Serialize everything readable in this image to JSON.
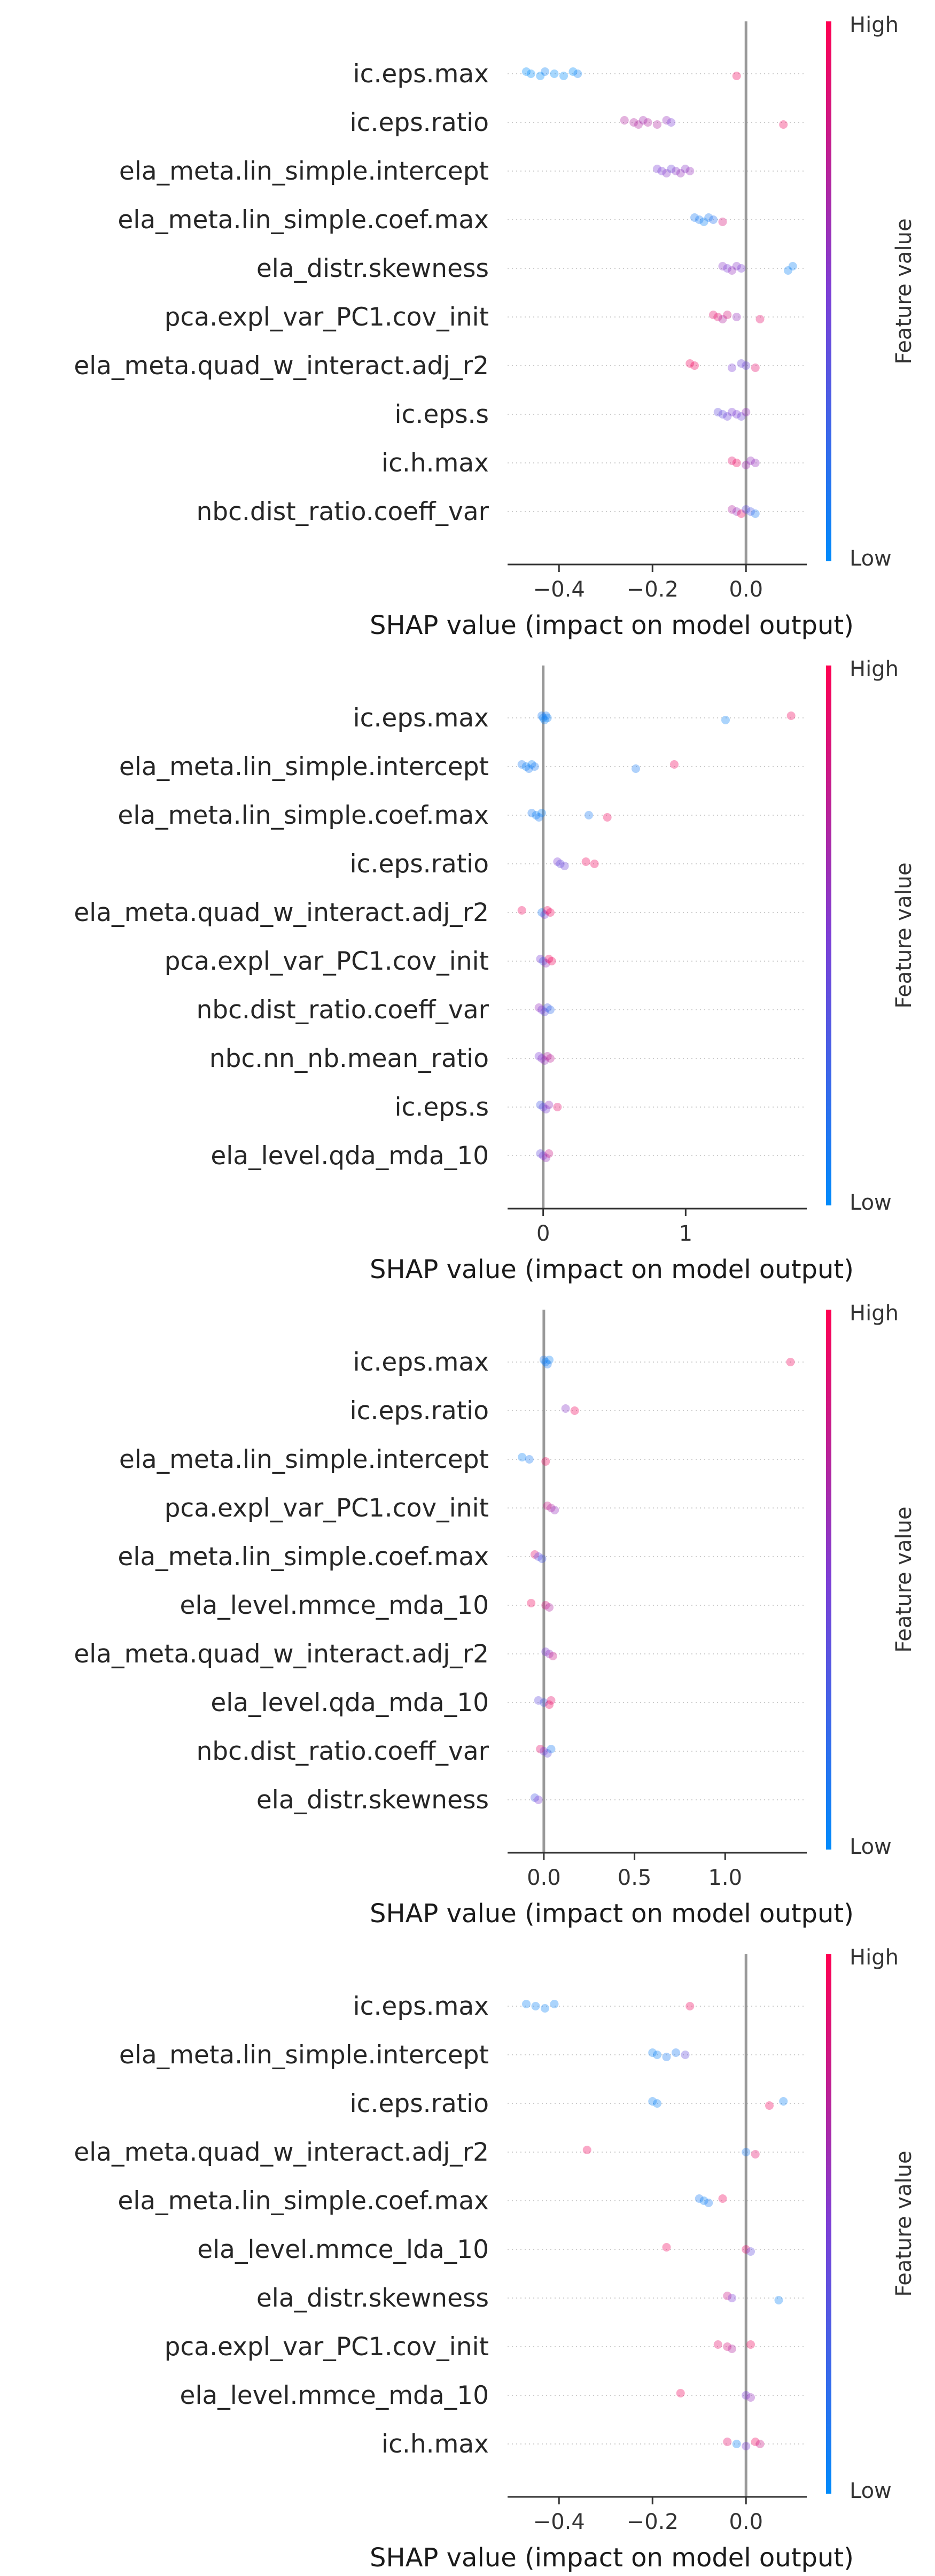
{
  "colors": {
    "high": "#ff0052",
    "low": "#008bfb",
    "zero_line": "#999999",
    "axis": "#333333",
    "row_line": "#cccccc"
  },
  "chart_data": [
    {
      "type": "scatter",
      "subtype": "shap_beeswarm",
      "xlabel": "SHAP value (impact on model output)",
      "colorbar": {
        "title": "Feature value",
        "high_label": "High",
        "low_label": "Low"
      },
      "xlim": [
        -0.51,
        0.13
      ],
      "xticks": [
        -0.4,
        -0.2,
        0.0
      ],
      "xtick_labels": [
        "−0.4",
        "−0.2",
        "0.0"
      ],
      "features": [
        {
          "name": "ic.eps.max",
          "points": [
            [
              -0.47,
              0.0
            ],
            [
              -0.46,
              0.0
            ],
            [
              -0.44,
              0.0
            ],
            [
              -0.43,
              0.05
            ],
            [
              -0.41,
              0.0
            ],
            [
              -0.39,
              0.0
            ],
            [
              -0.37,
              0.0
            ],
            [
              -0.36,
              0.05
            ],
            [
              -0.02,
              0.95
            ]
          ]
        },
        {
          "name": "ic.eps.ratio",
          "points": [
            [
              -0.26,
              0.7
            ],
            [
              -0.24,
              0.7
            ],
            [
              -0.23,
              0.7
            ],
            [
              -0.22,
              0.65
            ],
            [
              -0.21,
              0.7
            ],
            [
              -0.19,
              0.7
            ],
            [
              -0.17,
              0.6
            ],
            [
              -0.16,
              0.5
            ],
            [
              0.08,
              0.95
            ]
          ]
        },
        {
          "name": "ela_meta.lin_simple.intercept",
          "points": [
            [
              -0.19,
              0.5
            ],
            [
              -0.18,
              0.5
            ],
            [
              -0.17,
              0.55
            ],
            [
              -0.16,
              0.45
            ],
            [
              -0.15,
              0.55
            ],
            [
              -0.14,
              0.6
            ],
            [
              -0.13,
              0.55
            ],
            [
              -0.12,
              0.6
            ]
          ]
        },
        {
          "name": "ela_meta.lin_simple.coef.max",
          "points": [
            [
              -0.11,
              0.1
            ],
            [
              -0.1,
              0.1
            ],
            [
              -0.09,
              0.05
            ],
            [
              -0.08,
              0.1
            ],
            [
              -0.07,
              0.15
            ],
            [
              -0.05,
              0.85
            ]
          ]
        },
        {
          "name": "ela_distr.skewness",
          "points": [
            [
              -0.05,
              0.55
            ],
            [
              -0.04,
              0.5
            ],
            [
              -0.03,
              0.6
            ],
            [
              -0.02,
              0.55
            ],
            [
              -0.01,
              0.5
            ],
            [
              0.09,
              0.05
            ],
            [
              0.1,
              0.05
            ]
          ]
        },
        {
          "name": "pca.expl_var_PC1.cov_init",
          "points": [
            [
              -0.07,
              0.9
            ],
            [
              -0.06,
              0.9
            ],
            [
              -0.05,
              0.7
            ],
            [
              -0.04,
              0.85
            ],
            [
              -0.02,
              0.6
            ],
            [
              0.03,
              0.9
            ]
          ]
        },
        {
          "name": "ela_meta.quad_w_interact.adj_r2",
          "points": [
            [
              -0.12,
              0.95
            ],
            [
              -0.11,
              0.95
            ],
            [
              -0.03,
              0.5
            ],
            [
              -0.01,
              0.45
            ],
            [
              0.0,
              0.45
            ],
            [
              0.02,
              0.9
            ]
          ]
        },
        {
          "name": "ic.eps.s",
          "points": [
            [
              -0.06,
              0.4
            ],
            [
              -0.05,
              0.4
            ],
            [
              -0.04,
              0.45
            ],
            [
              -0.03,
              0.5
            ],
            [
              -0.02,
              0.5
            ],
            [
              -0.01,
              0.45
            ],
            [
              0.0,
              0.6
            ]
          ]
        },
        {
          "name": "ic.h.max",
          "points": [
            [
              -0.03,
              0.9
            ],
            [
              -0.02,
              0.95
            ],
            [
              0.0,
              0.65
            ],
            [
              0.01,
              0.6
            ],
            [
              0.02,
              0.6
            ]
          ]
        },
        {
          "name": "nbc.dist_ratio.coeff_var",
          "points": [
            [
              -0.03,
              0.7
            ],
            [
              -0.02,
              0.6
            ],
            [
              -0.01,
              0.95
            ],
            [
              0.0,
              0.4
            ],
            [
              0.01,
              0.3
            ],
            [
              0.02,
              0.1
            ]
          ]
        }
      ]
    },
    {
      "type": "scatter",
      "subtype": "shap_beeswarm",
      "xlabel": "SHAP value (impact on model output)",
      "colorbar": {
        "title": "Feature value",
        "high_label": "High",
        "low_label": "Low"
      },
      "xlim": [
        -0.25,
        1.85
      ],
      "xticks": [
        0,
        1
      ],
      "xtick_labels": [
        "0",
        "1"
      ],
      "features": [
        {
          "name": "ic.eps.max",
          "points": [
            [
              -0.01,
              0.1
            ],
            [
              0.0,
              0.05
            ],
            [
              0.01,
              0.05
            ],
            [
              0.02,
              0.1
            ],
            [
              0.03,
              0.05
            ],
            [
              1.28,
              0.05
            ],
            [
              1.74,
              0.95
            ]
          ]
        },
        {
          "name": "ela_meta.lin_simple.intercept",
          "points": [
            [
              -0.15,
              0.1
            ],
            [
              -0.12,
              0.05
            ],
            [
              -0.1,
              0.1
            ],
            [
              -0.08,
              0.05
            ],
            [
              -0.06,
              0.1
            ],
            [
              0.65,
              0.1
            ],
            [
              0.92,
              0.95
            ]
          ]
        },
        {
          "name": "ela_meta.lin_simple.coef.max",
          "points": [
            [
              -0.08,
              0.1
            ],
            [
              -0.05,
              0.05
            ],
            [
              -0.03,
              0.1
            ],
            [
              -0.01,
              0.05
            ],
            [
              0.32,
              0.1
            ],
            [
              0.45,
              0.95
            ]
          ]
        },
        {
          "name": "ic.eps.ratio",
          "points": [
            [
              0.1,
              0.5
            ],
            [
              0.12,
              0.4
            ],
            [
              0.15,
              0.45
            ],
            [
              0.3,
              0.95
            ],
            [
              0.36,
              0.95
            ]
          ]
        },
        {
          "name": "ela_meta.quad_w_interact.adj_r2",
          "points": [
            [
              -0.15,
              0.95
            ],
            [
              -0.01,
              0.1
            ],
            [
              0.01,
              0.5
            ],
            [
              0.03,
              0.95
            ],
            [
              0.05,
              0.95
            ]
          ]
        },
        {
          "name": "pca.expl_var_PC1.cov_init",
          "points": [
            [
              -0.02,
              0.5
            ],
            [
              0.0,
              0.3
            ],
            [
              0.02,
              0.6
            ],
            [
              0.04,
              0.95
            ],
            [
              0.06,
              0.95
            ]
          ]
        },
        {
          "name": "nbc.dist_ratio.coeff_var",
          "points": [
            [
              -0.03,
              0.6
            ],
            [
              -0.01,
              0.5
            ],
            [
              0.01,
              0.4
            ],
            [
              0.03,
              0.3
            ],
            [
              0.05,
              0.2
            ]
          ]
        },
        {
          "name": "nbc.nn_nb.mean_ratio",
          "points": [
            [
              -0.03,
              0.5
            ],
            [
              -0.01,
              0.55
            ],
            [
              0.01,
              0.6
            ],
            [
              0.03,
              0.7
            ],
            [
              0.05,
              0.75
            ]
          ]
        },
        {
          "name": "ic.eps.s",
          "points": [
            [
              -0.02,
              0.3
            ],
            [
              0.0,
              0.4
            ],
            [
              0.02,
              0.5
            ],
            [
              0.04,
              0.6
            ],
            [
              0.1,
              0.9
            ]
          ]
        },
        {
          "name": "ela_level.qda_mda_10",
          "points": [
            [
              -0.02,
              0.4
            ],
            [
              0.0,
              0.5
            ],
            [
              0.02,
              0.6
            ],
            [
              0.04,
              0.8
            ]
          ]
        }
      ]
    },
    {
      "type": "scatter",
      "subtype": "shap_beeswarm",
      "xlabel": "SHAP value (impact on model output)",
      "colorbar": {
        "title": "Feature value",
        "high_label": "High",
        "low_label": "Low"
      },
      "xlim": [
        -0.2,
        1.45
      ],
      "xticks": [
        0,
        0.5,
        1
      ],
      "xtick_labels": [
        "0.0",
        "0.5",
        "1.0"
      ],
      "features": [
        {
          "name": "ic.eps.max",
          "points": [
            [
              0.0,
              0.1
            ],
            [
              0.01,
              0.05
            ],
            [
              0.02,
              0.1
            ],
            [
              0.03,
              0.05
            ],
            [
              1.36,
              0.95
            ]
          ]
        },
        {
          "name": "ic.eps.ratio",
          "points": [
            [
              0.12,
              0.55
            ],
            [
              0.17,
              0.95
            ]
          ]
        },
        {
          "name": "ela_meta.lin_simple.intercept",
          "points": [
            [
              -0.12,
              0.05
            ],
            [
              -0.08,
              0.1
            ],
            [
              0.01,
              0.95
            ]
          ]
        },
        {
          "name": "pca.expl_var_PC1.cov_init",
          "points": [
            [
              0.02,
              0.8
            ],
            [
              0.04,
              0.7
            ],
            [
              0.06,
              0.6
            ]
          ]
        },
        {
          "name": "ela_meta.lin_simple.coef.max",
          "points": [
            [
              -0.05,
              0.9
            ],
            [
              -0.03,
              0.4
            ],
            [
              -0.01,
              0.3
            ]
          ]
        },
        {
          "name": "ela_level.mmce_mda_10",
          "points": [
            [
              -0.07,
              0.95
            ],
            [
              0.01,
              0.85
            ],
            [
              0.03,
              0.7
            ]
          ]
        },
        {
          "name": "ela_meta.quad_w_interact.adj_r2",
          "points": [
            [
              0.01,
              0.5
            ],
            [
              0.03,
              0.6
            ],
            [
              0.05,
              0.8
            ]
          ]
        },
        {
          "name": "ela_level.qda_mda_10",
          "points": [
            [
              -0.03,
              0.4
            ],
            [
              0.0,
              0.3
            ],
            [
              0.03,
              0.95
            ],
            [
              0.04,
              0.9
            ]
          ]
        },
        {
          "name": "nbc.dist_ratio.coeff_var",
          "points": [
            [
              -0.02,
              0.9
            ],
            [
              0.0,
              0.5
            ],
            [
              0.02,
              0.4
            ],
            [
              0.04,
              0.1
            ]
          ]
        },
        {
          "name": "ela_distr.skewness",
          "points": [
            [
              -0.05,
              0.3
            ],
            [
              -0.03,
              0.5
            ]
          ]
        }
      ]
    },
    {
      "type": "scatter",
      "subtype": "shap_beeswarm",
      "xlabel": "SHAP value (impact on model output)",
      "colorbar": {
        "title": "Feature value",
        "high_label": "High",
        "low_label": "Low"
      },
      "xlim": [
        -0.51,
        0.13
      ],
      "xticks": [
        -0.4,
        -0.2,
        0.0
      ],
      "xtick_labels": [
        "−0.4",
        "−0.2",
        "0.0"
      ],
      "features": [
        {
          "name": "ic.eps.max",
          "points": [
            [
              -0.47,
              0.05
            ],
            [
              -0.45,
              0.05
            ],
            [
              -0.43,
              0.05
            ],
            [
              -0.41,
              0.05
            ],
            [
              -0.12,
              0.95
            ]
          ]
        },
        {
          "name": "ela_meta.lin_simple.intercept",
          "points": [
            [
              -0.2,
              0.05
            ],
            [
              -0.19,
              0.05
            ],
            [
              -0.17,
              0.1
            ],
            [
              -0.15,
              0.1
            ],
            [
              -0.13,
              0.4
            ]
          ]
        },
        {
          "name": "ic.eps.ratio",
          "points": [
            [
              -0.2,
              0.05
            ],
            [
              -0.19,
              0.05
            ],
            [
              0.05,
              0.95
            ],
            [
              0.08,
              0.05
            ]
          ]
        },
        {
          "name": "ela_meta.quad_w_interact.adj_r2",
          "points": [
            [
              -0.34,
              0.95
            ],
            [
              0.0,
              0.1
            ],
            [
              0.02,
              0.9
            ]
          ]
        },
        {
          "name": "ela_meta.lin_simple.coef.max",
          "points": [
            [
              -0.1,
              0.1
            ],
            [
              -0.09,
              0.05
            ],
            [
              -0.08,
              0.1
            ],
            [
              -0.05,
              0.95
            ]
          ]
        },
        {
          "name": "ela_level.mmce_lda_10",
          "points": [
            [
              -0.17,
              0.95
            ],
            [
              0.0,
              0.9
            ],
            [
              0.01,
              0.4
            ]
          ]
        },
        {
          "name": "ela_distr.skewness",
          "points": [
            [
              -0.04,
              0.8
            ],
            [
              -0.03,
              0.5
            ],
            [
              0.07,
              0.05
            ]
          ]
        },
        {
          "name": "pca.expl_var_PC1.cov_init",
          "points": [
            [
              -0.06,
              0.9
            ],
            [
              -0.04,
              0.85
            ],
            [
              -0.03,
              0.7
            ],
            [
              0.01,
              0.95
            ]
          ]
        },
        {
          "name": "ela_level.mmce_mda_10",
          "points": [
            [
              -0.14,
              0.95
            ],
            [
              0.0,
              0.5
            ],
            [
              0.01,
              0.6
            ]
          ]
        },
        {
          "name": "ic.h.max",
          "points": [
            [
              -0.04,
              0.9
            ],
            [
              -0.02,
              0.05
            ],
            [
              0.0,
              0.5
            ],
            [
              0.02,
              0.95
            ],
            [
              0.03,
              0.8
            ]
          ]
        }
      ]
    }
  ]
}
